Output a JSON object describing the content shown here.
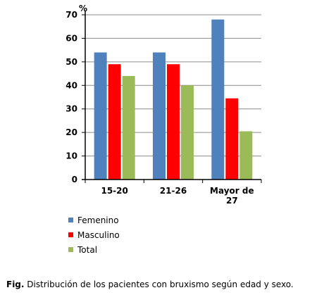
{
  "chart_data": {
    "type": "bar",
    "y_unit": "%",
    "categories": [
      "15-20",
      "21-26",
      "Mayor de 27"
    ],
    "category_lines": [
      [
        "15-20"
      ],
      [
        "21-26"
      ],
      [
        "Mayor de",
        "27"
      ]
    ],
    "series": [
      {
        "name": "Femenino",
        "color": "#4f81bd",
        "values": [
          54,
          54,
          68
        ]
      },
      {
        "name": "Masculino",
        "color": "#ff0000",
        "values": [
          49,
          49,
          34.5
        ]
      },
      {
        "name": "Total",
        "color": "#9bbb59",
        "values": [
          44,
          40,
          20.5
        ]
      }
    ],
    "ylim": [
      0,
      70
    ],
    "yticks": [
      0,
      10,
      20,
      30,
      40,
      50,
      60,
      70
    ],
    "grid": true,
    "legend_position": "bottom-left"
  },
  "caption": {
    "prefix": "Fig.",
    "text": "Distribución de los pacientes con bruxismo según edad y sexo."
  }
}
